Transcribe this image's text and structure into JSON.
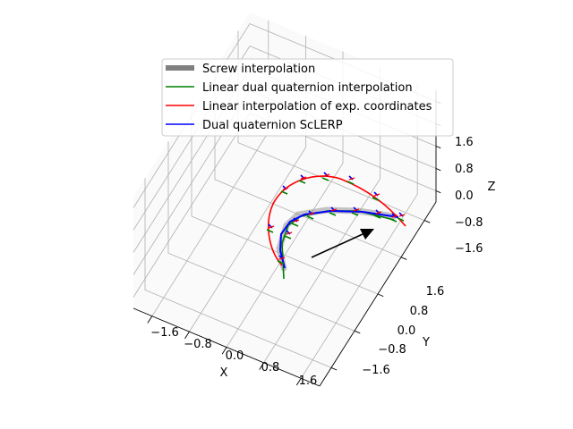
{
  "chart_data": {
    "type": "line",
    "projection": "3d",
    "xlabel": "X",
    "ylabel": "Y",
    "zlabel": "Z",
    "xlim": [
      -2.0,
      2.0
    ],
    "ylim": [
      -2.0,
      2.0
    ],
    "zlim": [
      -2.0,
      2.0
    ],
    "x_ticks": [
      "−1.6",
      "−0.8",
      "0.0",
      "0.8",
      "1.6"
    ],
    "y_ticks": [
      "−1.6",
      "−0.8",
      "0.0",
      "0.8",
      "1.6"
    ],
    "z_ticks": [
      "−1.6",
      "−0.8",
      "0.0",
      "0.8",
      "1.6"
    ],
    "grid": true,
    "legend_position": "top-center",
    "series": [
      {
        "name": "Screw interpolation",
        "color": "#808080",
        "style": "thick-band"
      },
      {
        "name": "Linear dual quaternion interpolation",
        "color": "#008000",
        "style": "line"
      },
      {
        "name": "Linear interpolation of exp. coordinates",
        "color": "#ff0000",
        "style": "line"
      },
      {
        "name": "Dual quaternion ScLERP",
        "color": "#0000ff",
        "style": "line"
      }
    ],
    "annotation": {
      "type": "arrow",
      "color": "#000000"
    }
  }
}
